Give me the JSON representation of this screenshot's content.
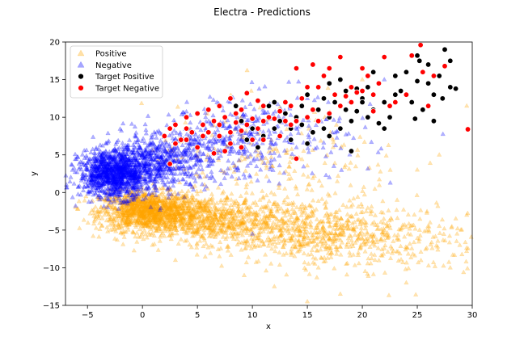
{
  "chart_data": {
    "type": "scatter",
    "title": "Electra  - Predictions",
    "xlabel": "x",
    "ylabel": "y",
    "xlim": [
      -7,
      30
    ],
    "ylim": [
      -15,
      20
    ],
    "xticks": [
      "−5",
      "0",
      "5",
      "10",
      "15",
      "20",
      "25",
      "30"
    ],
    "yticks": [
      "−15",
      "−10",
      "−5",
      "0",
      "5",
      "10",
      "15",
      "20"
    ],
    "xtick_values": [
      -5,
      0,
      5,
      10,
      15,
      20,
      25,
      30
    ],
    "ytick_values": [
      -15,
      -10,
      -5,
      0,
      5,
      10,
      15,
      20
    ],
    "grid": false,
    "legend_position": "upper-left",
    "series": [
      {
        "name": "Positive",
        "marker": "triangle",
        "color": "#FFA500",
        "clusters": [
          {
            "cx": 0.5,
            "cy": -2.5,
            "sx": 2.2,
            "sy": 1.3,
            "n": 1200
          },
          {
            "cx": 6,
            "cy": -3.5,
            "sx": 3.0,
            "sy": 1.6,
            "n": 600
          },
          {
            "cx": 14,
            "cy": -5,
            "sx": 4.5,
            "sy": 2.0,
            "n": 600
          },
          {
            "cx": 22,
            "cy": -6,
            "sx": 4.5,
            "sy": 2.5,
            "n": 250
          },
          {
            "cx": 12,
            "cy": 3,
            "sx": 6.0,
            "sy": 4.0,
            "n": 220
          }
        ],
        "points": [
          [
            7,
            -8.5
          ],
          [
            12,
            -12.5
          ],
          [
            15,
            -14.5
          ],
          [
            18,
            -13.5
          ],
          [
            24,
            -12
          ],
          [
            28,
            -10
          ],
          [
            29.5,
            -3
          ],
          [
            3,
            -9
          ],
          [
            29.5,
            11.5
          ],
          [
            20,
            15
          ],
          [
            9,
            10
          ],
          [
            16,
            -10
          ],
          [
            25,
            3
          ],
          [
            27,
            5
          ]
        ]
      },
      {
        "name": "Negative",
        "marker": "triangle",
        "color": "#0000FF",
        "clusters": [
          {
            "cx": -2.5,
            "cy": 2.5,
            "sx": 1.6,
            "sy": 1.6,
            "n": 1200
          },
          {
            "cx": 1.5,
            "cy": 4.0,
            "sx": 2.2,
            "sy": 1.8,
            "n": 500
          },
          {
            "cx": 7,
            "cy": 6.5,
            "sx": 3.0,
            "sy": 2.2,
            "n": 300
          },
          {
            "cx": 13,
            "cy": 7.5,
            "sx": 4.0,
            "sy": 3.0,
            "n": 150
          }
        ],
        "points": [
          [
            -5.5,
            4
          ],
          [
            10,
            -5.5
          ],
          [
            20,
            12
          ],
          [
            22,
            15
          ],
          [
            17,
            2
          ],
          [
            15,
            12.5
          ]
        ]
      },
      {
        "name": "Target Positive",
        "marker": "circle",
        "color": "#000000",
        "points": [
          [
            27.5,
            19
          ],
          [
            25,
            18.2
          ],
          [
            26,
            17
          ],
          [
            28,
            17.5
          ],
          [
            25.2,
            17.5
          ],
          [
            24,
            16
          ],
          [
            27,
            15.5
          ],
          [
            28,
            14
          ],
          [
            26,
            14.5
          ],
          [
            25,
            14.8
          ],
          [
            26.5,
            13
          ],
          [
            27.3,
            12.5
          ],
          [
            24.5,
            12
          ],
          [
            25.5,
            11
          ],
          [
            26.5,
            9.5
          ],
          [
            24.8,
            9.8
          ],
          [
            23,
            15.5
          ],
          [
            23,
            13
          ],
          [
            22,
            12
          ],
          [
            22.5,
            10
          ],
          [
            22,
            8.5
          ],
          [
            21.5,
            9.2
          ],
          [
            21,
            16
          ],
          [
            20.5,
            14
          ],
          [
            20,
            12.5
          ],
          [
            19.5,
            10.8
          ],
          [
            20.5,
            10
          ],
          [
            19,
            9.5
          ],
          [
            18,
            15
          ],
          [
            18.5,
            13.5
          ],
          [
            17.5,
            12
          ],
          [
            18.5,
            11
          ],
          [
            17,
            10
          ],
          [
            18,
            8.5
          ],
          [
            19,
            5.5
          ],
          [
            17,
            14.5
          ],
          [
            16.5,
            12.5
          ],
          [
            16,
            11
          ],
          [
            16,
            9.5
          ],
          [
            15.5,
            8
          ],
          [
            17,
            7.5
          ],
          [
            15,
            13
          ],
          [
            14.5,
            11.5
          ],
          [
            14,
            10
          ],
          [
            14.5,
            9
          ],
          [
            13.5,
            7
          ],
          [
            13.5,
            8.5
          ],
          [
            15,
            6.5
          ],
          [
            12,
            12
          ],
          [
            12.5,
            9.5
          ],
          [
            12,
            8.5
          ],
          [
            11.5,
            11.5
          ],
          [
            11,
            7.5
          ],
          [
            10.5,
            6
          ],
          [
            10,
            8.5
          ],
          [
            9.5,
            7
          ],
          [
            9,
            9.5
          ],
          [
            8.5,
            11.5
          ],
          [
            13,
            10.5
          ],
          [
            16.5,
            8.5
          ],
          [
            19.5,
            13.8
          ],
          [
            21,
            11
          ],
          [
            23.5,
            13.5
          ],
          [
            28.5,
            13.8
          ],
          [
            20,
            12
          ]
        ]
      },
      {
        "name": "Target Negative",
        "marker": "circle",
        "color": "#FF0000",
        "points": [
          [
            25.3,
            19.6
          ],
          [
            27.5,
            16.8
          ],
          [
            25.5,
            16
          ],
          [
            26.5,
            15.5
          ],
          [
            24.5,
            18.2
          ],
          [
            23,
            12
          ],
          [
            22,
            18
          ],
          [
            20,
            16.5
          ],
          [
            20.5,
            15.5
          ],
          [
            19,
            14
          ],
          [
            19.5,
            13.3
          ],
          [
            21,
            13
          ],
          [
            18,
            18
          ],
          [
            17,
            16.5
          ],
          [
            16.5,
            15.5
          ],
          [
            15.5,
            17
          ],
          [
            14,
            16.5
          ],
          [
            15,
            14
          ],
          [
            14.5,
            12.5
          ],
          [
            13.5,
            11.5
          ],
          [
            12.5,
            10.8
          ],
          [
            11.5,
            10
          ],
          [
            10.5,
            12.2
          ],
          [
            9.5,
            13.2
          ],
          [
            8,
            12.5
          ],
          [
            7,
            11.5
          ],
          [
            6,
            11
          ],
          [
            5,
            10.5
          ],
          [
            4,
            10
          ],
          [
            3,
            9
          ],
          [
            2.5,
            8.5
          ],
          [
            2,
            7.5
          ],
          [
            3.5,
            7
          ],
          [
            4.5,
            8
          ],
          [
            5.5,
            9
          ],
          [
            6.5,
            9.5
          ],
          [
            7.5,
            10
          ],
          [
            8.5,
            10.5
          ],
          [
            9.5,
            9
          ],
          [
            10.5,
            8.5
          ],
          [
            11,
            9.5
          ],
          [
            12,
            9.8
          ],
          [
            13,
            9.5
          ],
          [
            14,
            9.5
          ],
          [
            15,
            10
          ],
          [
            16,
            9.5
          ],
          [
            17,
            10.5
          ],
          [
            18,
            11.5
          ],
          [
            19,
            12
          ],
          [
            20,
            13.5
          ],
          [
            21.5,
            14.5
          ],
          [
            22.5,
            11.5
          ],
          [
            6,
            8
          ],
          [
            7,
            7.5
          ],
          [
            8,
            8
          ],
          [
            9,
            8.2
          ],
          [
            10,
            9.8
          ],
          [
            5,
            6
          ],
          [
            4,
            7
          ],
          [
            3,
            6.5
          ],
          [
            6.5,
            5.2
          ],
          [
            8,
            6.5
          ],
          [
            9,
            6
          ],
          [
            11,
            7
          ],
          [
            12.5,
            7.5
          ],
          [
            14,
            4.5
          ],
          [
            2.5,
            3.8
          ],
          [
            7.5,
            5.5
          ],
          [
            29.6,
            8.4
          ],
          [
            16,
            14
          ],
          [
            13,
            12
          ],
          [
            11,
            11.5
          ],
          [
            9,
            11
          ],
          [
            7,
            9
          ],
          [
            5.5,
            7.5
          ],
          [
            4,
            8.5
          ],
          [
            17.5,
            13
          ],
          [
            18.5,
            12.8
          ],
          [
            21,
            10.8
          ],
          [
            24,
            13
          ],
          [
            26,
            11.5
          ],
          [
            13.5,
            9
          ],
          [
            10,
            7
          ],
          [
            15.5,
            11
          ],
          [
            8.5,
            9.3
          ]
        ]
      }
    ]
  }
}
